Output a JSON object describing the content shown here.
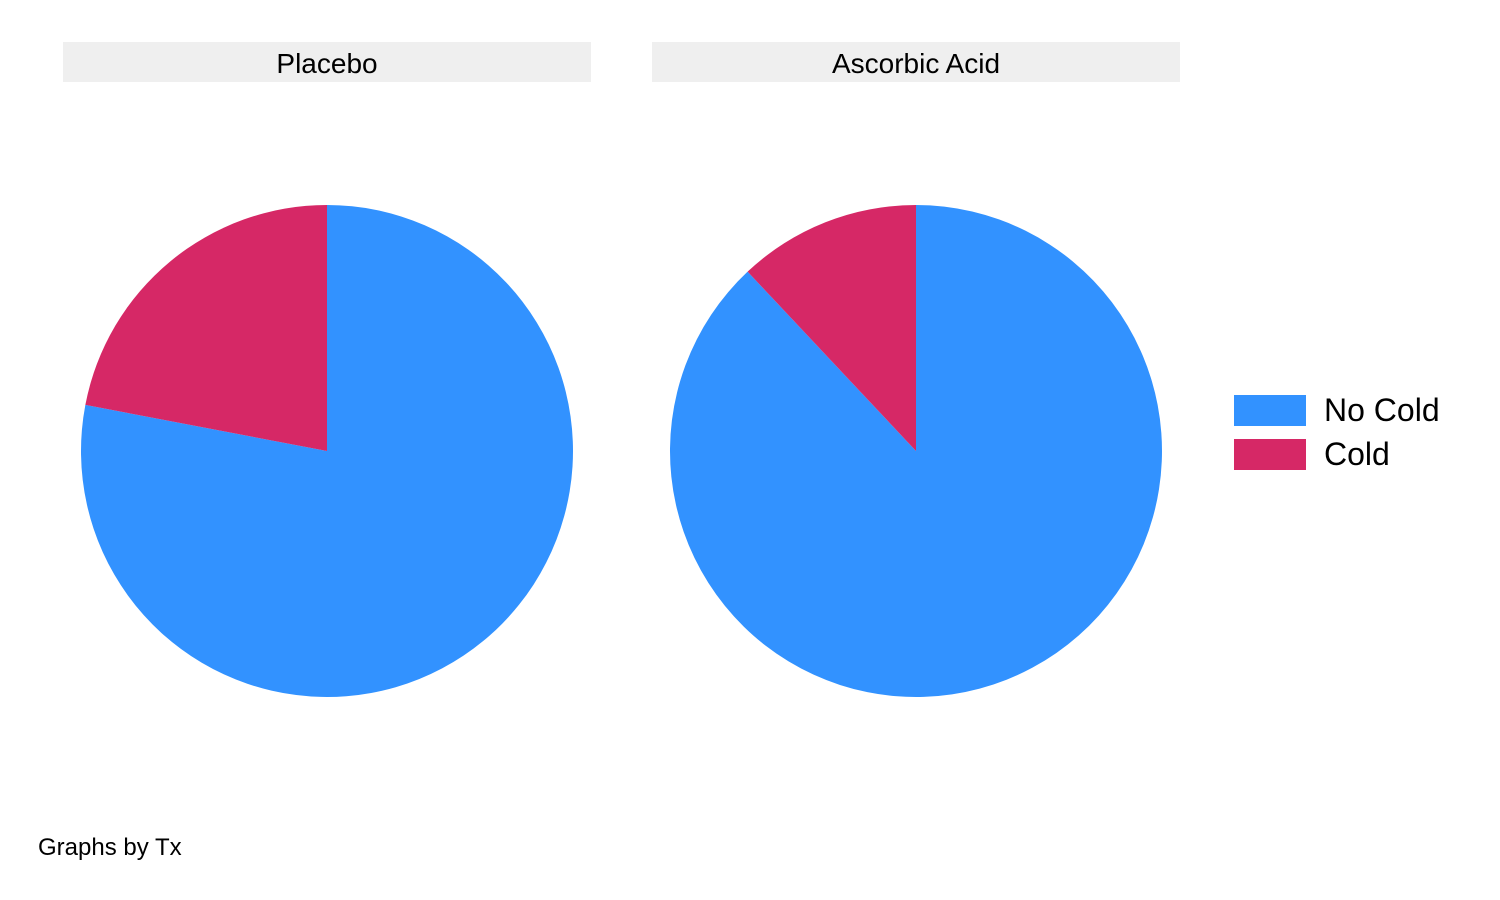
{
  "chart_data": {
    "type": "pie",
    "categories": [
      "No Cold",
      "Cold"
    ],
    "colors": [
      "#3292ff",
      "#d62866"
    ],
    "panels": [
      {
        "title": "Placebo",
        "values": [
          78,
          22
        ]
      },
      {
        "title": "Ascorbic Acid",
        "values": [
          88,
          12
        ]
      }
    ],
    "legend": {
      "placement": "right",
      "items": [
        "No Cold",
        "Cold"
      ]
    },
    "note": "Graphs by Tx"
  }
}
